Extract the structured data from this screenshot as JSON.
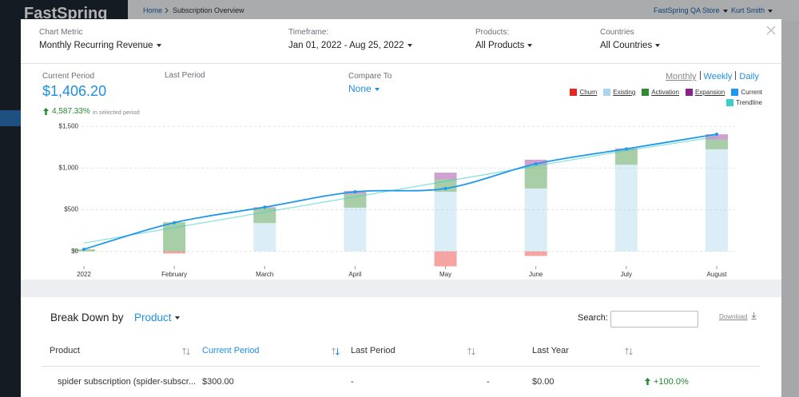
{
  "app": {
    "logo": "FastSpring",
    "breadcrumb": [
      "Home",
      "Subscription Overview"
    ],
    "store": "FastSpring QA Store",
    "user": "Kurt Smith"
  },
  "filters": [
    {
      "label": "Chart Metric",
      "value": "Monthly Recurring Revenue"
    },
    {
      "label": "Timeframe:",
      "value": "Jan 01, 2022 - Aug 25, 2022"
    },
    {
      "label": "Products:",
      "value": "All Products"
    },
    {
      "label": "Countries",
      "value": "All Countries"
    }
  ],
  "summary": {
    "current_label": "Current Period",
    "current_value": "$1,406.20",
    "last_label": "Last Period",
    "compare_label": "Compare To",
    "compare_value": "None",
    "change": "4,587.33%",
    "change_note": "in selected period",
    "intervals": [
      "Monthly",
      "Weekly",
      "Daily"
    ]
  },
  "chart_data": {
    "type": "bar",
    "categories": [
      "2022",
      "February",
      "March",
      "April",
      "May",
      "June",
      "July",
      "August"
    ],
    "series": [
      {
        "name": "Churn",
        "type": "bar",
        "color": "#e8261f",
        "values": [
          0,
          -25,
          0,
          0,
          -180,
          -55,
          0,
          0
        ]
      },
      {
        "name": "Existing",
        "type": "bar",
        "color": "#a9d6ec",
        "values": [
          0,
          0,
          340,
          525,
          715,
          755,
          1040,
          1225
        ]
      },
      {
        "name": "Activation",
        "type": "bar",
        "color": "#2f8a2f",
        "values": [
          25,
          350,
          180,
          165,
          150,
          280,
          185,
          115
        ]
      },
      {
        "name": "Expansion",
        "type": "bar",
        "color": "#8e1f8e",
        "values": [
          0,
          0,
          10,
          35,
          80,
          65,
          10,
          65
        ]
      },
      {
        "name": "Current",
        "type": "line",
        "color": "#1e98ee",
        "values": [
          25,
          345,
          530,
          715,
          755,
          1050,
          1230,
          1406.2
        ]
      },
      {
        "name": "Trendline",
        "type": "line",
        "color": "#3ecdc4",
        "values": [
          100,
          285,
          470,
          655,
          840,
          1025,
          1210,
          1375
        ]
      }
    ],
    "ylim": [
      -300,
      1550
    ],
    "yticks": [
      {
        "value": 0,
        "label": "$0"
      },
      {
        "value": 500,
        "label": "$500"
      },
      {
        "value": 1000,
        "label": "$1,000"
      },
      {
        "value": 1500,
        "label": "$1,500"
      }
    ],
    "grid": true
  },
  "breakdown": {
    "title": "Break Down by",
    "dimension": "Product",
    "search_label": "Search:",
    "download": "Download",
    "columns": [
      "Product",
      "Current Period",
      "Last Period",
      "Last Year"
    ],
    "rows": [
      [
        "spider subscription (spider-subscr...",
        "$300.00",
        "-",
        "-",
        "$0.00",
        "+100.0%"
      ]
    ]
  }
}
